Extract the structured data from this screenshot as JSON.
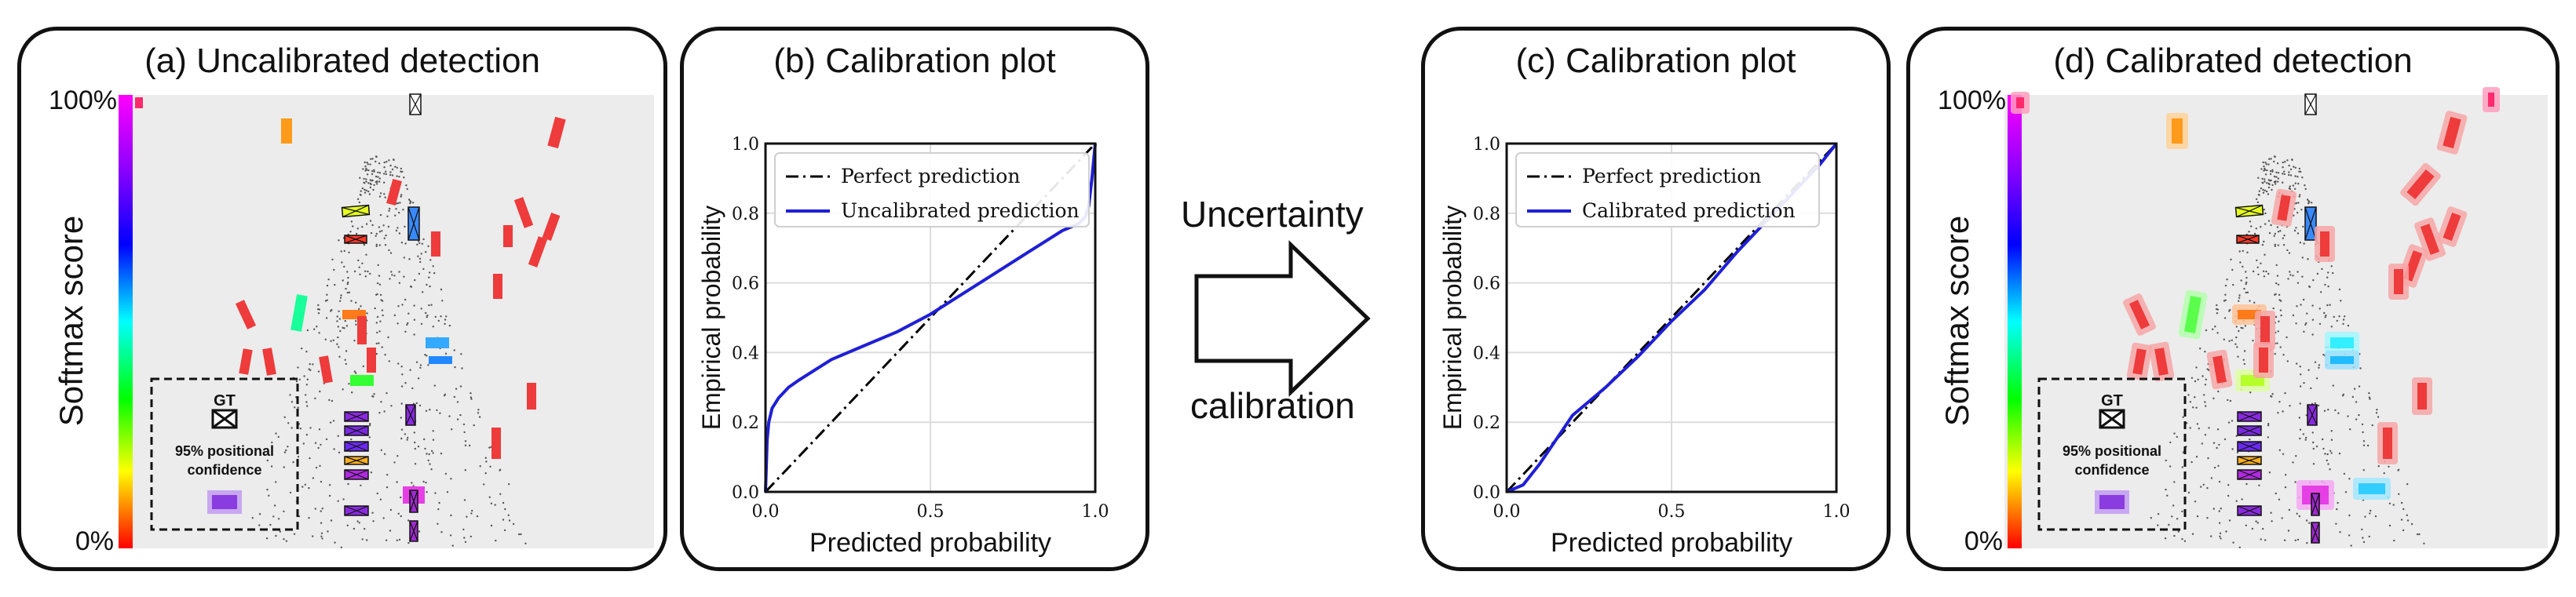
{
  "panels": {
    "a_title": "(a) Uncalibrated detection",
    "b_title": "(b) Calibration plot",
    "c_title": "(c) Calibration plot",
    "d_title": "(d) Calibrated detection"
  },
  "detection": {
    "ylabel": "Softmax score",
    "top_label": "100%",
    "bottom_label": "0%",
    "legend_gt": "GT",
    "legend_conf_line1": "95% positional",
    "legend_conf_line2": "confidence"
  },
  "arrow": {
    "top_text": "Uncertainty",
    "bottom_text": "calibration"
  },
  "chart_data": [
    {
      "type": "line",
      "xlabel": "Predicted probability",
      "ylabel": "Empirical probability",
      "xlim": [
        0.0,
        1.0
      ],
      "ylim": [
        0.0,
        1.0
      ],
      "xticks": [
        "0.0",
        "0.5",
        "1.0"
      ],
      "yticks": [
        "0.0",
        "0.2",
        "0.4",
        "0.6",
        "0.8",
        "1.0"
      ],
      "grid": true,
      "legend": "top-left",
      "series": [
        {
          "name": "Perfect prediction",
          "color": "#000000",
          "dash": "dashdot",
          "x": [
            0,
            1
          ],
          "y": [
            0,
            1
          ]
        },
        {
          "name": "Uncalibrated prediction",
          "color": "#1f1fd6",
          "x": [
            0.0,
            0.005,
            0.01,
            0.02,
            0.04,
            0.07,
            0.1,
            0.15,
            0.2,
            0.3,
            0.4,
            0.5,
            0.6,
            0.7,
            0.8,
            0.85,
            0.9,
            0.95,
            0.97,
            0.98,
            0.99,
            1.0
          ],
          "y": [
            0.0,
            0.15,
            0.2,
            0.24,
            0.27,
            0.3,
            0.32,
            0.35,
            0.38,
            0.42,
            0.46,
            0.51,
            0.57,
            0.63,
            0.69,
            0.72,
            0.75,
            0.77,
            0.79,
            0.82,
            0.9,
            1.0
          ]
        }
      ]
    },
    {
      "type": "line",
      "xlabel": "Predicted probability",
      "ylabel": "Empirical probability",
      "xlim": [
        0.0,
        1.0
      ],
      "ylim": [
        0.0,
        1.0
      ],
      "xticks": [
        "0.0",
        "0.5",
        "1.0"
      ],
      "yticks": [
        "0.0",
        "0.2",
        "0.4",
        "0.6",
        "0.8",
        "1.0"
      ],
      "grid": true,
      "legend": "top-left",
      "series": [
        {
          "name": "Perfect prediction",
          "color": "#000000",
          "dash": "dashdot",
          "x": [
            0,
            1
          ],
          "y": [
            0,
            1
          ]
        },
        {
          "name": "Calibrated prediction",
          "color": "#1f1fd6",
          "x": [
            0.0,
            0.05,
            0.1,
            0.15,
            0.2,
            0.25,
            0.3,
            0.4,
            0.5,
            0.6,
            0.7,
            0.8,
            0.9,
            0.95,
            1.0
          ],
          "y": [
            0.0,
            0.02,
            0.08,
            0.15,
            0.22,
            0.26,
            0.3,
            0.39,
            0.49,
            0.58,
            0.69,
            0.79,
            0.89,
            0.94,
            1.0
          ]
        }
      ]
    }
  ],
  "colors": {
    "scene_bg": "#ececec",
    "box_red": "#ee3b3b",
    "uncertainty_halo": "#f5a8a8",
    "perfect_line": "#000000",
    "model_line": "#1f1fd6"
  }
}
